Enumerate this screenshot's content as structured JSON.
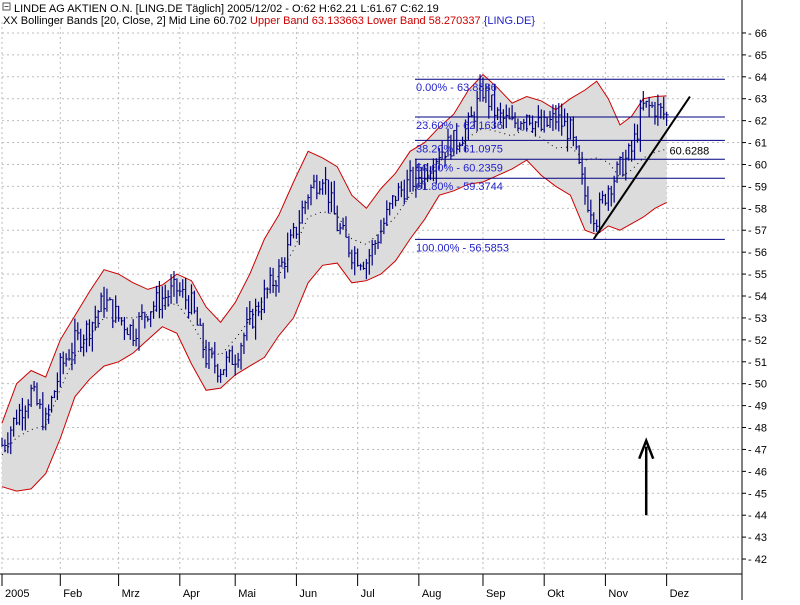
{
  "header": {
    "line1": "LINDE AG AKTIEN O.N. [LING.DE  Täglich] 2005/12/02 - O:62 H:62.21 L:61.67 C:62.19",
    "line2_prefix": "XX",
    "line2_bb": "Bollinger Bands [20, Close, 2] Mid Line 60.702",
    "line2_upper": "Upper Band 63.133663",
    "line2_lower": "Lower Band 58.270337",
    "line2_symbol": "{LING.DE}"
  },
  "colors": {
    "price_bars": "#000080",
    "band_line": "#cc0000",
    "band_fill": "#dcdcdc",
    "mid_line": "#000000",
    "fib_lines": "#000080",
    "fib_text": "#2222cc",
    "trendline": "#000000",
    "arrow": "#000000",
    "grid": "#bdbdbd",
    "axis_text": "#000000"
  },
  "chart_data": {
    "type": "bar",
    "title": "LINDE AG AKTIEN O.N. [LING.DE  Täglich]",
    "ylim": [
      41.5,
      66.5
    ],
    "y_ticks": [
      42,
      43,
      44,
      45,
      46,
      47,
      48,
      49,
      50,
      51,
      52,
      53,
      54,
      55,
      56,
      57,
      58,
      59,
      60,
      61,
      62,
      63,
      64,
      65,
      66
    ],
    "x_months": [
      "2005",
      "Feb",
      "Mrz",
      "Apr",
      "Mai",
      "Jun",
      "Jul",
      "Aug",
      "Sep",
      "Okt",
      "Nov",
      "Dez"
    ],
    "x_month_index": [
      0,
      1,
      2,
      3,
      4,
      5,
      6,
      7,
      8,
      9,
      10,
      11
    ],
    "x_month_pos": [
      0,
      20,
      40,
      61,
      80,
      101,
      122,
      143,
      165,
      186,
      207,
      228
    ],
    "n_days": 246,
    "close_series": [
      [
        0,
        47.2
      ],
      [
        5,
        48.5
      ],
      [
        10,
        49.6
      ],
      [
        15,
        48.2
      ],
      [
        20,
        50.7
      ],
      [
        25,
        51.9
      ],
      [
        30,
        52.6
      ],
      [
        35,
        53.8
      ],
      [
        40,
        53.0
      ],
      [
        45,
        52.4
      ],
      [
        50,
        53.4
      ],
      [
        55,
        53.9
      ],
      [
        60,
        54.3
      ],
      [
        65,
        53.6
      ],
      [
        70,
        51.2
      ],
      [
        75,
        50.7
      ],
      [
        80,
        51.3
      ],
      [
        85,
        52.8
      ],
      [
        90,
        54.0
      ],
      [
        95,
        55.1
      ],
      [
        100,
        56.7
      ],
      [
        105,
        58.7
      ],
      [
        110,
        59.6
      ],
      [
        115,
        57.2
      ],
      [
        120,
        56.0
      ],
      [
        125,
        55.6
      ],
      [
        130,
        57.0
      ],
      [
        135,
        58.6
      ],
      [
        140,
        59.2
      ],
      [
        145,
        59.7
      ],
      [
        150,
        60.6
      ],
      [
        155,
        61.0
      ],
      [
        160,
        61.7
      ],
      [
        165,
        63.4
      ],
      [
        170,
        62.2
      ],
      [
        175,
        61.8
      ],
      [
        180,
        62.4
      ],
      [
        185,
        61.6
      ],
      [
        190,
        62.1
      ],
      [
        195,
        61.5
      ],
      [
        200,
        58.6
      ],
      [
        204,
        57.6
      ],
      [
        208,
        59.0
      ],
      [
        212,
        59.8
      ],
      [
        216,
        60.6
      ],
      [
        220,
        62.6
      ],
      [
        224,
        62.6
      ],
      [
        228,
        62.19
      ]
    ],
    "upper_band": [
      [
        0,
        48.2
      ],
      [
        5,
        50.0
      ],
      [
        10,
        50.6
      ],
      [
        15,
        50.3
      ],
      [
        20,
        52.0
      ],
      [
        25,
        53.1
      ],
      [
        30,
        54.2
      ],
      [
        35,
        55.2
      ],
      [
        40,
        55.0
      ],
      [
        45,
        54.6
      ],
      [
        50,
        54.3
      ],
      [
        55,
        54.5
      ],
      [
        60,
        55.0
      ],
      [
        65,
        54.7
      ],
      [
        70,
        53.5
      ],
      [
        75,
        52.8
      ],
      [
        80,
        53.7
      ],
      [
        85,
        55.0
      ],
      [
        90,
        56.6
      ],
      [
        95,
        57.7
      ],
      [
        100,
        59.2
      ],
      [
        105,
        60.6
      ],
      [
        110,
        60.3
      ],
      [
        115,
        59.9
      ],
      [
        120,
        58.6
      ],
      [
        125,
        58.0
      ],
      [
        130,
        58.9
      ],
      [
        135,
        59.6
      ],
      [
        140,
        60.6
      ],
      [
        145,
        61.0
      ],
      [
        150,
        61.7
      ],
      [
        155,
        62.3
      ],
      [
        160,
        63.4
      ],
      [
        165,
        64.1
      ],
      [
        170,
        63.5
      ],
      [
        175,
        62.8
      ],
      [
        180,
        63.1
      ],
      [
        185,
        62.9
      ],
      [
        190,
        62.5
      ],
      [
        195,
        63.0
      ],
      [
        200,
        63.4
      ],
      [
        204,
        63.8
      ],
      [
        208,
        63.0
      ],
      [
        212,
        61.8
      ],
      [
        216,
        62.2
      ],
      [
        220,
        63.0
      ],
      [
        224,
        63.1
      ],
      [
        228,
        63.13
      ]
    ],
    "lower_band": [
      [
        0,
        45.3
      ],
      [
        5,
        45.1
      ],
      [
        10,
        45.2
      ],
      [
        15,
        45.9
      ],
      [
        20,
        47.5
      ],
      [
        25,
        49.4
      ],
      [
        30,
        50.2
      ],
      [
        35,
        50.8
      ],
      [
        40,
        51.0
      ],
      [
        45,
        51.4
      ],
      [
        50,
        52.0
      ],
      [
        55,
        52.6
      ],
      [
        60,
        52.3
      ],
      [
        65,
        50.9
      ],
      [
        70,
        49.7
      ],
      [
        75,
        49.8
      ],
      [
        80,
        50.4
      ],
      [
        85,
        50.8
      ],
      [
        90,
        51.2
      ],
      [
        95,
        52.2
      ],
      [
        100,
        53.0
      ],
      [
        105,
        54.6
      ],
      [
        110,
        55.4
      ],
      [
        115,
        55.5
      ],
      [
        120,
        54.6
      ],
      [
        125,
        54.7
      ],
      [
        130,
        55.0
      ],
      [
        135,
        55.6
      ],
      [
        140,
        56.6
      ],
      [
        145,
        57.5
      ],
      [
        150,
        58.6
      ],
      [
        155,
        58.8
      ],
      [
        160,
        59.1
      ],
      [
        165,
        59.2
      ],
      [
        170,
        59.5
      ],
      [
        175,
        59.8
      ],
      [
        180,
        60.2
      ],
      [
        185,
        59.5
      ],
      [
        190,
        59.0
      ],
      [
        195,
        58.6
      ],
      [
        200,
        57.0
      ],
      [
        204,
        56.8
      ],
      [
        208,
        57.2
      ],
      [
        212,
        57.0
      ],
      [
        216,
        57.3
      ],
      [
        220,
        57.6
      ],
      [
        224,
        58.0
      ],
      [
        228,
        58.27
      ]
    ],
    "fibonacci": {
      "start_index": 200,
      "end_index": 248,
      "levels": [
        {
          "label": "0.00% - 63.8886",
          "value": 63.8886
        },
        {
          "label": "23.60% - 62.1636",
          "value": 62.1636
        },
        {
          "label": "38.20% - 61.0975",
          "value": 61.0975
        },
        {
          "label": "50.00% - 60.2359",
          "value": 60.2359
        },
        {
          "label": "61.80% - 59.3744",
          "value": 59.3744
        },
        {
          "label": "100.00% - 56.5853",
          "value": 56.5853
        }
      ]
    },
    "trendline": {
      "start": [
        203,
        56.6
      ],
      "end": [
        236,
        63.1
      ],
      "label": "60.6288",
      "label_value": 60.6288
    },
    "arrow": {
      "index": 221,
      "from": 44.0,
      "to": 47.4
    }
  }
}
